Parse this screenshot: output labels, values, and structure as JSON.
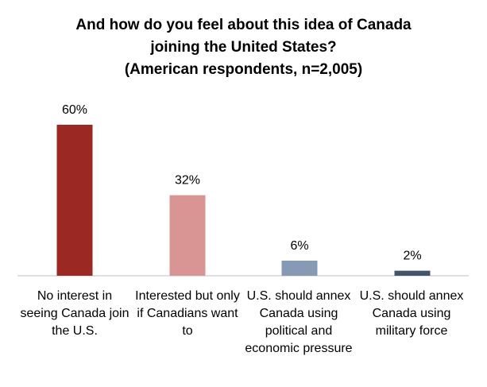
{
  "chart_data": {
    "type": "bar",
    "title_lines": [
      "And how do you feel about this idea of Canada",
      "joining the United States?",
      "(American respondents, n=2,005)"
    ],
    "categories": [
      "No interest in seeing Canada join the U.S.",
      "Interested but only if Canadians want to",
      "U.S. should annex Canada using political and economic pressure",
      "U.S. should annex Canada using military force"
    ],
    "values": [
      60,
      32,
      6,
      2
    ],
    "data_labels": [
      "60%",
      "32%",
      "6%",
      "2%"
    ],
    "bar_colors": [
      "#9b2823",
      "#d99593",
      "#8699b5",
      "#44546a"
    ],
    "ylim": [
      0,
      60
    ],
    "grid": false,
    "legend": false
  }
}
